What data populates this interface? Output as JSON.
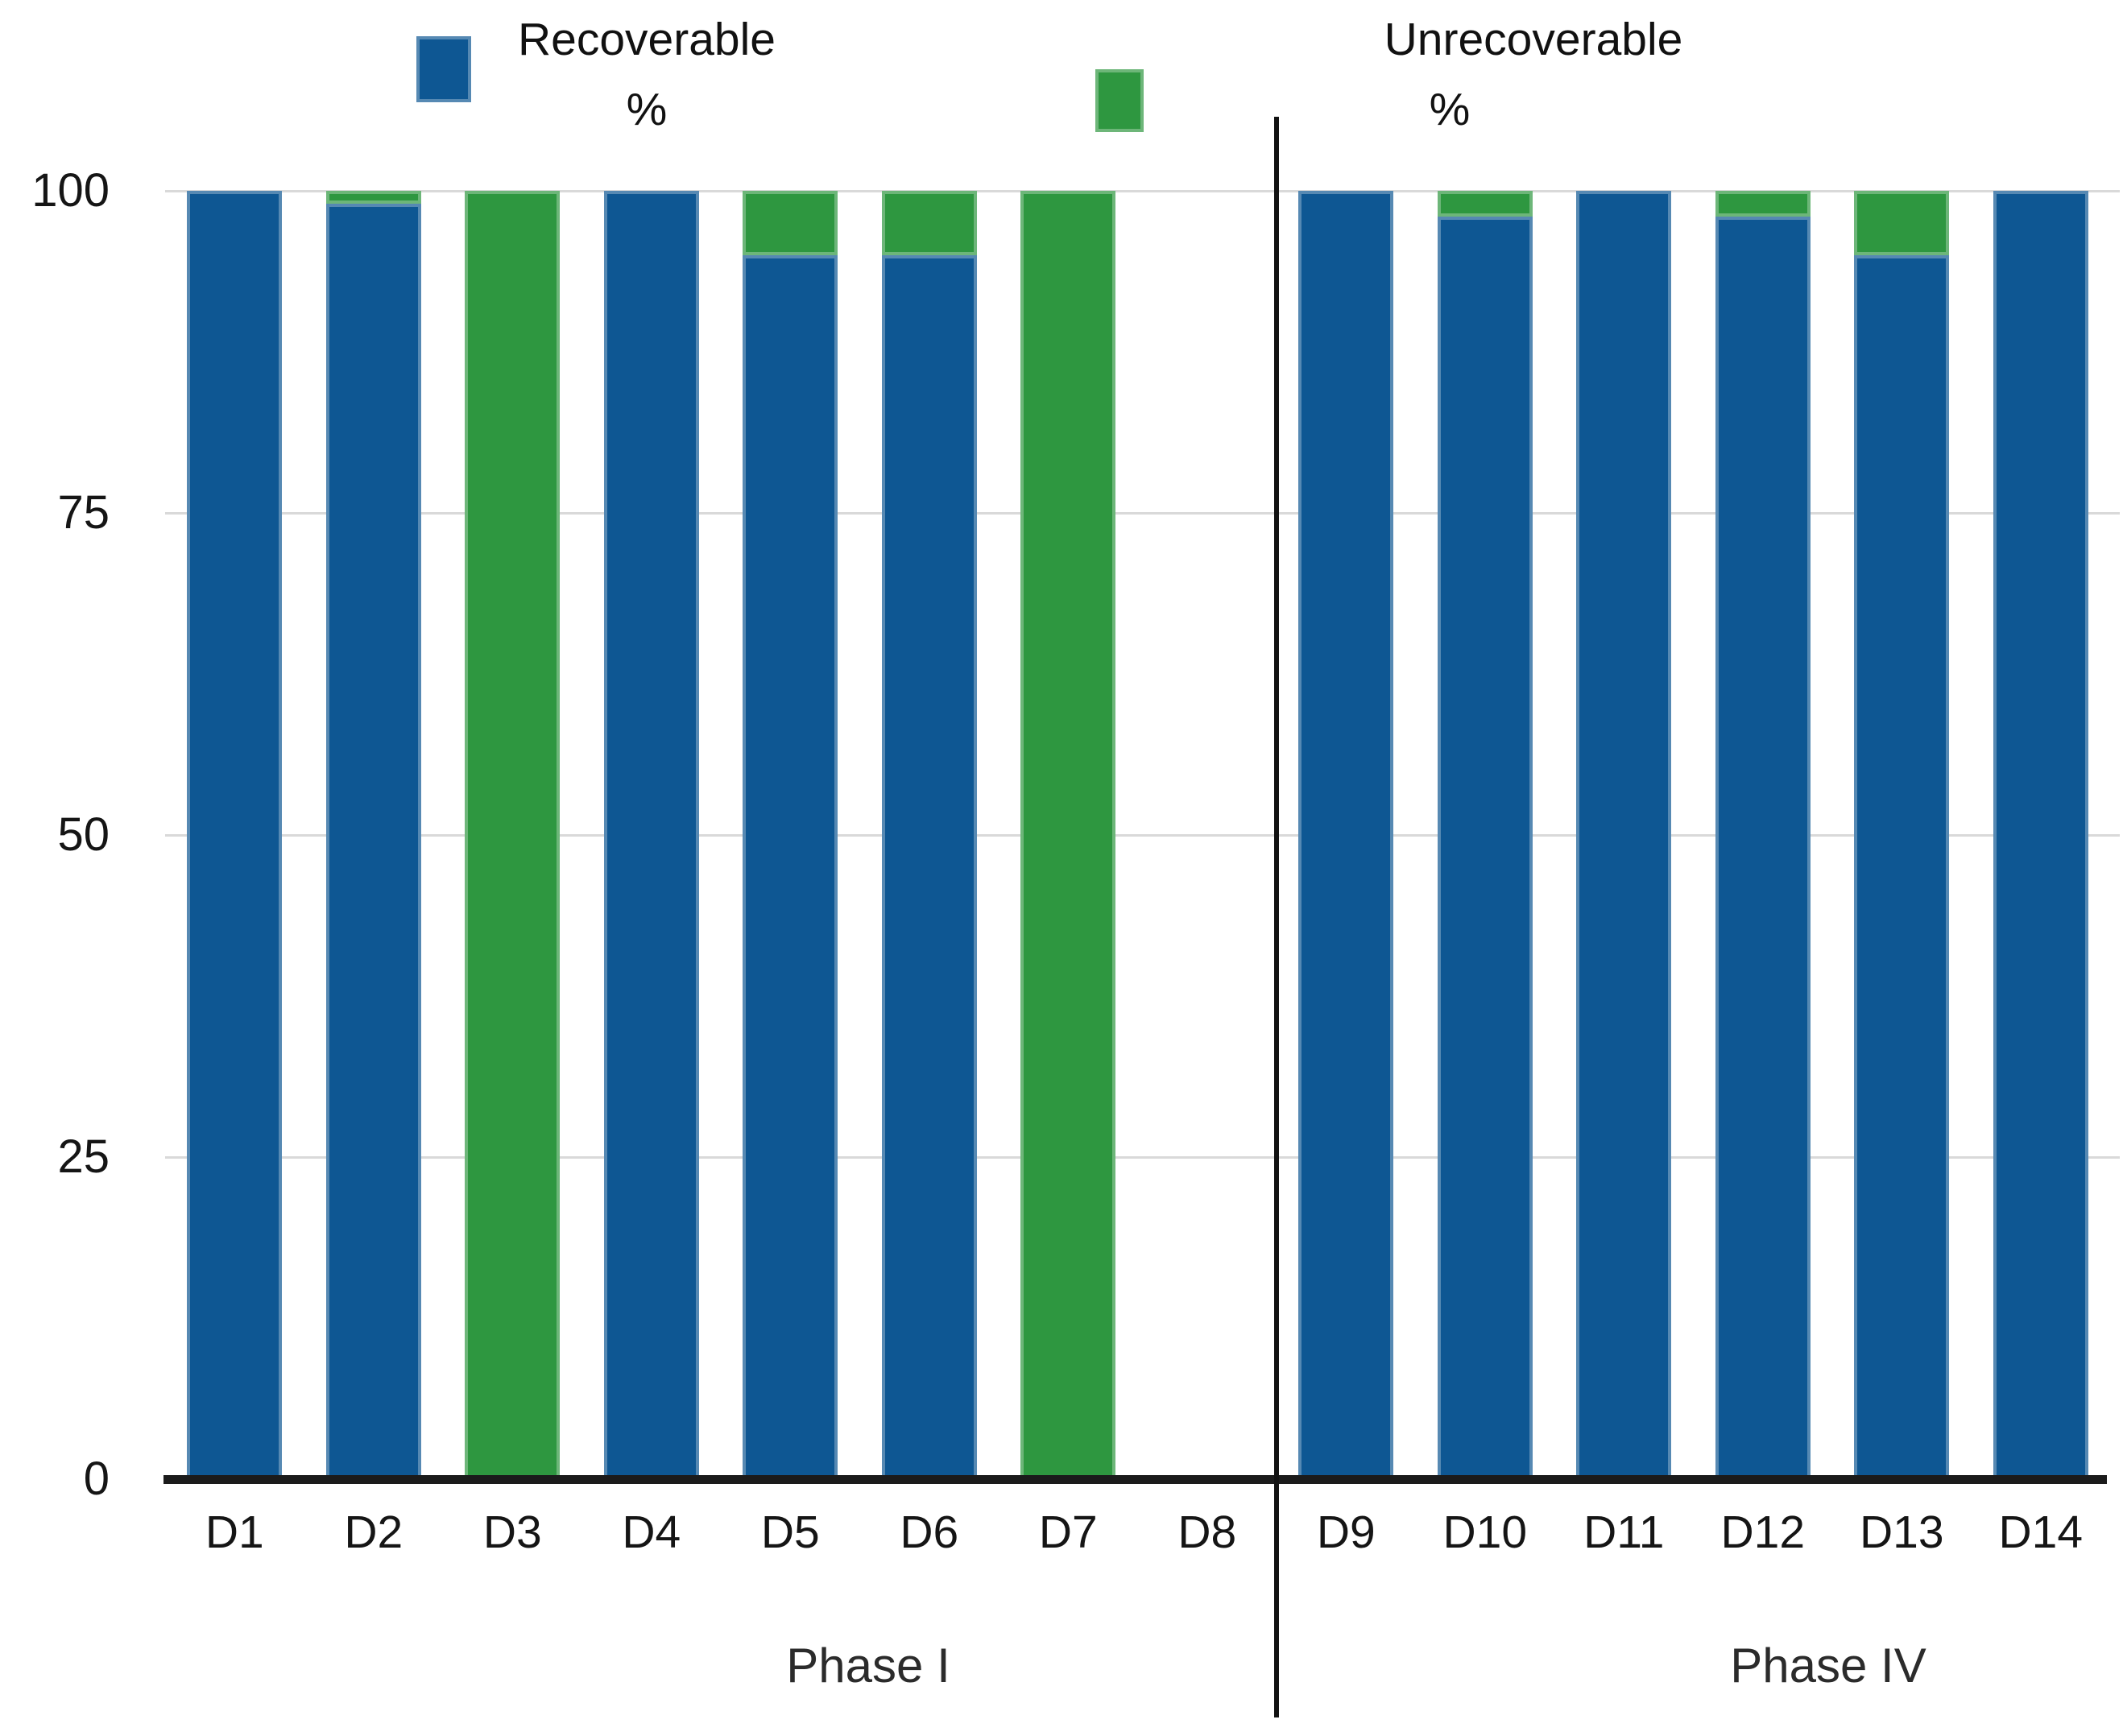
{
  "legend": {
    "recoverable": {
      "label": "Recoverable",
      "unit": "%"
    },
    "unrecoverable": {
      "label": "Unrecoverable",
      "unit": "%"
    }
  },
  "colors": {
    "recoverable": "#0e5793",
    "unrecoverable": "#2e9740",
    "gridline": "#d9d9d9",
    "axis": "#1b1b1b",
    "divider": "#121212"
  },
  "chart_data": {
    "type": "bar",
    "stacked": true,
    "title": "",
    "xlabel": "",
    "ylabel": "",
    "ylim": [
      0,
      100
    ],
    "grid": true,
    "legend_position": "top",
    "y_ticks": [
      100,
      75,
      50,
      25,
      0
    ],
    "categories": [
      "D1",
      "D2",
      "D3",
      "D4",
      "D5",
      "D6",
      "D7",
      "D8",
      "D9",
      "D10",
      "D11",
      "D12",
      "D13",
      "D14"
    ],
    "series": [
      {
        "name": "Recoverable %",
        "color": "#0e5793",
        "values": [
          100,
          99,
          0,
          100,
          95,
          95,
          0,
          0,
          100,
          98,
          100,
          98,
          95,
          100
        ]
      },
      {
        "name": "Unrecoverable %",
        "color": "#2e9740",
        "values": [
          0,
          1,
          100,
          0,
          5,
          5,
          100,
          0,
          0,
          2,
          0,
          2,
          5,
          0
        ]
      }
    ],
    "groups": [
      {
        "label": "Phase I",
        "categories": [
          "D1",
          "D2",
          "D3",
          "D4",
          "D5",
          "D6",
          "D7",
          "D8"
        ]
      },
      {
        "label": "Phase IV",
        "categories": [
          "D9",
          "D10",
          "D11",
          "D12",
          "D13",
          "D14"
        ]
      }
    ],
    "group_separator_after_category": "D8"
  }
}
